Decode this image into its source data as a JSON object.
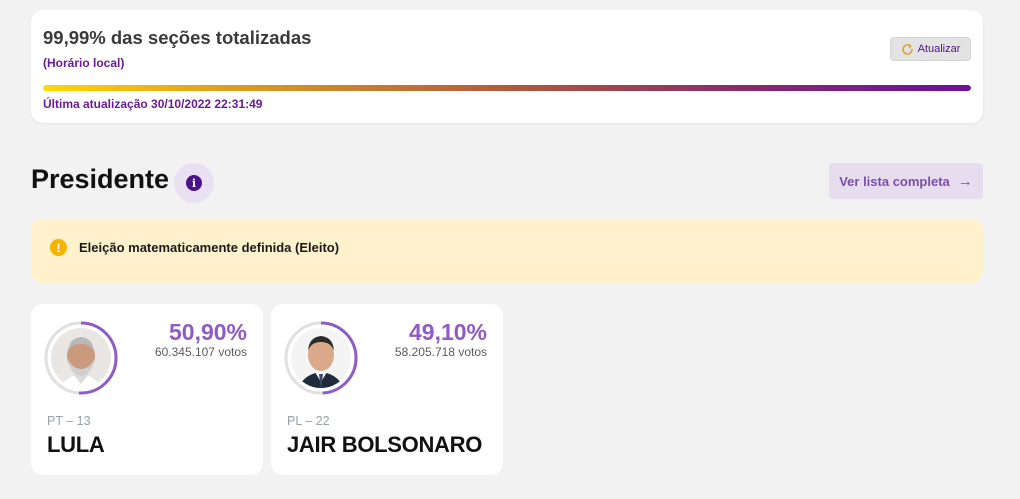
{
  "status": {
    "title": "99,99% das seções totalizadas",
    "subtitle": "(Horário local)",
    "refresh_label": "Atualizar",
    "progress": 0.9999,
    "last_update": "Última atualização 30/10/2022 22:31:49"
  },
  "section": {
    "title": "Presidente",
    "info_icon": "info-icon",
    "list_button_label": "Ver lista completa",
    "list_button_icon": "arrow-right-icon"
  },
  "alert": {
    "icon": "info-icon",
    "text": "Eleição matematicamente definida (Eleito)"
  },
  "candidates": [
    {
      "percent": "50,90%",
      "votes": "60.345.107 votos",
      "party": "PT – 13",
      "name": "LULA",
      "vote_share": 0.509
    },
    {
      "percent": "49,10%",
      "votes": "58.205.718 votos",
      "party": "PL – 22",
      "name": "JAIR BOLSONARO",
      "vote_share": 0.491
    }
  ],
  "colors": {
    "accent": "#6a1b9a",
    "percent": "#8e5cc4",
    "alert_bg": "#fff1cc",
    "alert_icon": "#f5b400"
  }
}
